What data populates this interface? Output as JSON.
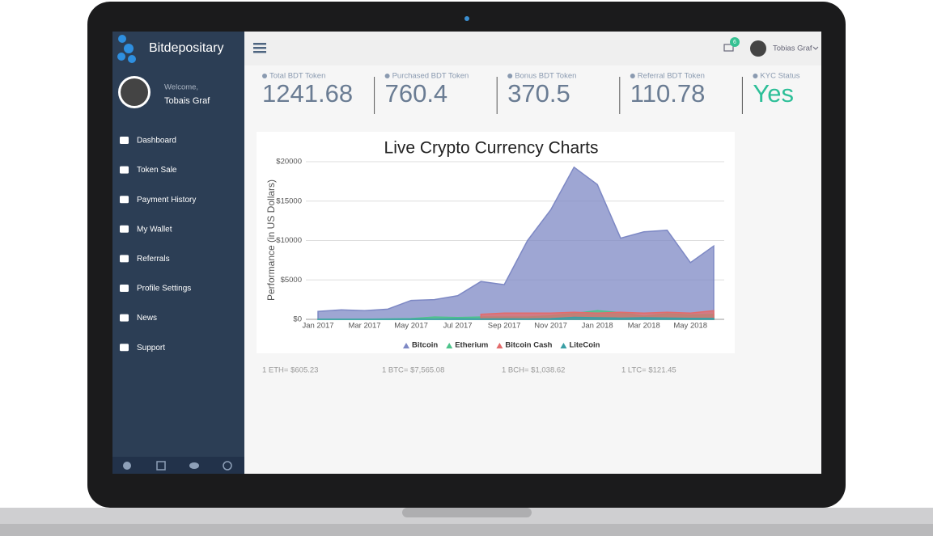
{
  "sidebar": {
    "brand": "Bitdepositary",
    "welcome": "Welcome,",
    "user": "Tobais Graf",
    "menu": [
      "Dashboard",
      "Token Sale",
      "Payment History",
      "My Wallet",
      "Referrals",
      "Profile Settings",
      "News",
      "Support"
    ]
  },
  "header": {
    "notifications": "6",
    "user": "Tobias Graf"
  },
  "stats": [
    {
      "label": "Total BDT Token",
      "value": "1241.68"
    },
    {
      "label": "Purchased BDT Token",
      "value": "760.4"
    },
    {
      "label": "Bonus BDT Token",
      "value": "370.5"
    },
    {
      "label": "Referral BDT Token",
      "value": "110.78"
    },
    {
      "label": "KYC Status",
      "value": "Yes"
    }
  ],
  "chart_data": {
    "type": "area",
    "title": "Live Crypto Currency Charts",
    "y_label": "Performance (in US Dollars)",
    "categories": [
      "Jan 2017",
      null,
      "Mar 2017",
      null,
      "May 2017",
      null,
      "Jul 2017",
      null,
      "Sep 2017",
      null,
      "Nov 2017",
      null,
      "Jan 2018",
      null,
      "Mar 2018",
      null,
      "May 2018",
      null
    ],
    "series": [
      {
        "name": "Bitcoin",
        "color": "#7d88c4",
        "values": [
          1000,
          1200,
          1100,
          1300,
          2400,
          2500,
          3000,
          4800,
          4400,
          10000,
          13900,
          19300,
          17100,
          10300,
          11100,
          11300,
          7200,
          9300
        ]
      },
      {
        "name": "Etherium",
        "color": "#4cc38a",
        "values": [
          8,
          12,
          17,
          50,
          90,
          300,
          230,
          300,
          300,
          300,
          450,
          750,
          1100,
          850,
          400,
          700,
          550,
          600
        ]
      },
      {
        "name": "Bitcoin Cash",
        "color": "#e36b6b",
        "values": [
          null,
          null,
          null,
          null,
          null,
          null,
          null,
          650,
          800,
          800,
          800,
          900,
          800,
          900,
          800,
          900,
          800,
          1100
        ]
      },
      {
        "name": "LiteCoin",
        "color": "#3a9fa5",
        "values": [
          4,
          4,
          4,
          10,
          25,
          30,
          45,
          45,
          60,
          55,
          90,
          250,
          200,
          160,
          200,
          170,
          130,
          120
        ]
      }
    ],
    "ylim": [
      0,
      20000
    ],
    "yticks": [
      {
        "value": 0,
        "label": "$0"
      },
      {
        "value": 5000,
        "label": "$5000"
      },
      {
        "value": 10000,
        "label": "$10000"
      },
      {
        "value": 15000,
        "label": "$15000"
      },
      {
        "value": 20000,
        "label": "$20000"
      }
    ],
    "grid": true
  },
  "prices": [
    "1 ETH= $605.23",
    "1 BTC= $7,565.08",
    "1 BCH= $1,038.62",
    "1 LTC= $121.45"
  ]
}
